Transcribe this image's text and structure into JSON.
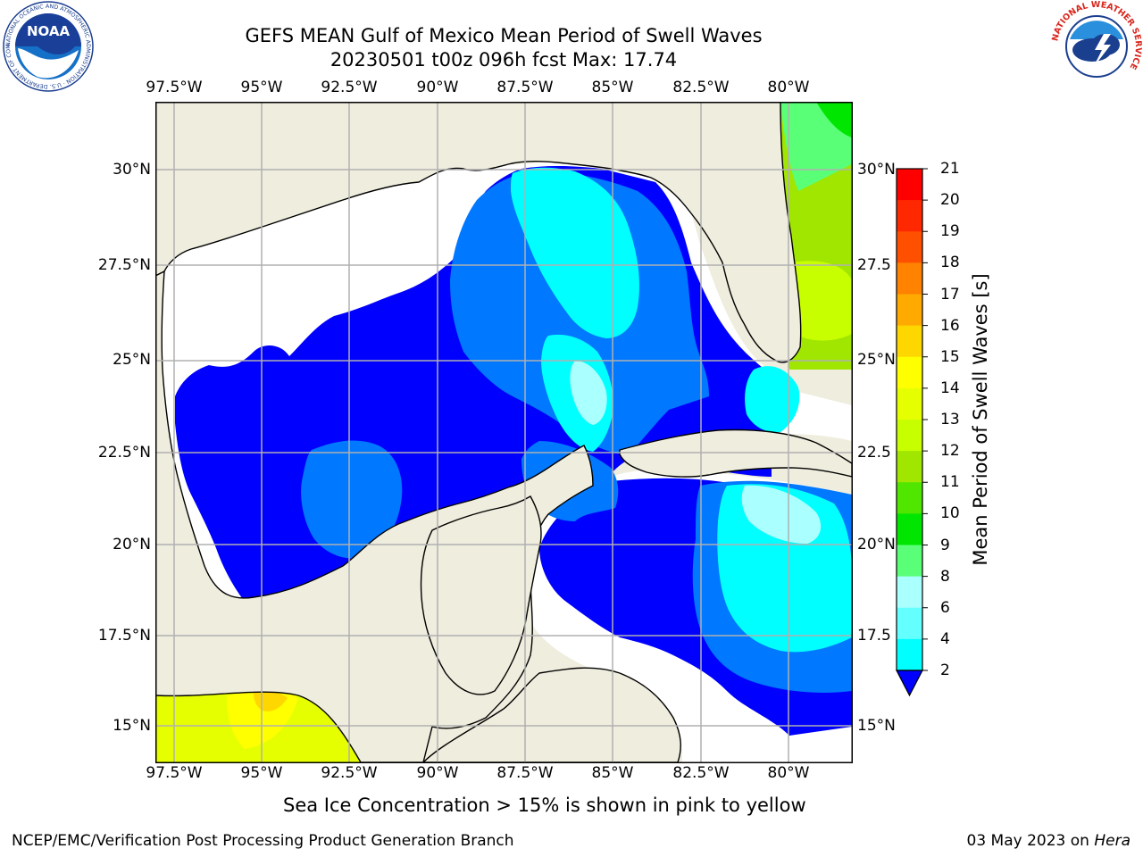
{
  "title": {
    "line1": "GEFS MEAN Gulf of Mexico Mean Period of Swell Waves",
    "line2": "20230501 t00z 096h fcst   Max: 17.74"
  },
  "logos": {
    "noaa_text": "NOAA",
    "noaa_ring": "NATIONAL OCEANIC AND ATMOSPHERIC ADMINISTRATION · U.S. DEPARTMENT OF COMMERCE",
    "nws_ring": "NATIONAL WEATHER SERVICE"
  },
  "map": {
    "lon_labels_top": [
      "97.5°W",
      "95°W",
      "92.5°W",
      "90°W",
      "87.5°W",
      "85°W",
      "82.5°W",
      "80°W"
    ],
    "lon_labels_bottom": [
      "97.5°W",
      "95°W",
      "92.5°W",
      "90°W",
      "87.5°W",
      "85°W",
      "82.5°W",
      "80°W"
    ],
    "lat_labels_left": [
      "30°N",
      "27.5°N",
      "25°N",
      "22.5°N",
      "20°N",
      "17.5°N",
      "15°N"
    ],
    "lat_labels_right": [
      "30°N",
      "27.5",
      "25°N",
      "22.5",
      "20°N",
      "17.5",
      "15°N"
    ],
    "land_color": "#efedde",
    "grid": true,
    "variable": "Mean Period of Swell Waves [s]"
  },
  "colorbar": {
    "label": "Mean Period of Swell Waves [s]",
    "ticks": [
      "2",
      "4",
      "6",
      "8",
      "9",
      "10",
      "11",
      "12",
      "13",
      "14",
      "15",
      "16",
      "17",
      "18",
      "19",
      "20",
      "21"
    ],
    "colors": [
      "#0078ff",
      "#00c8ff",
      "#00ffff",
      "#64ffff",
      "#aaffff",
      "#5aff78",
      "#00e600",
      "#50e600",
      "#a0e600",
      "#c8ff00",
      "#e6ff00",
      "#ffff00",
      "#ffd700",
      "#ffaa00",
      "#ff8200",
      "#ff5000",
      "#ff2800",
      "#ff0000"
    ],
    "under_color": "#0000ff",
    "extend": "min"
  },
  "note": "Sea Ice Concentration > 15% is shown in pink to yellow",
  "footer": {
    "left": "NCEP/EMC/Verification Post Processing Product Generation Branch",
    "right_date": "03 May 2023 on",
    "right_host": "Hera"
  }
}
